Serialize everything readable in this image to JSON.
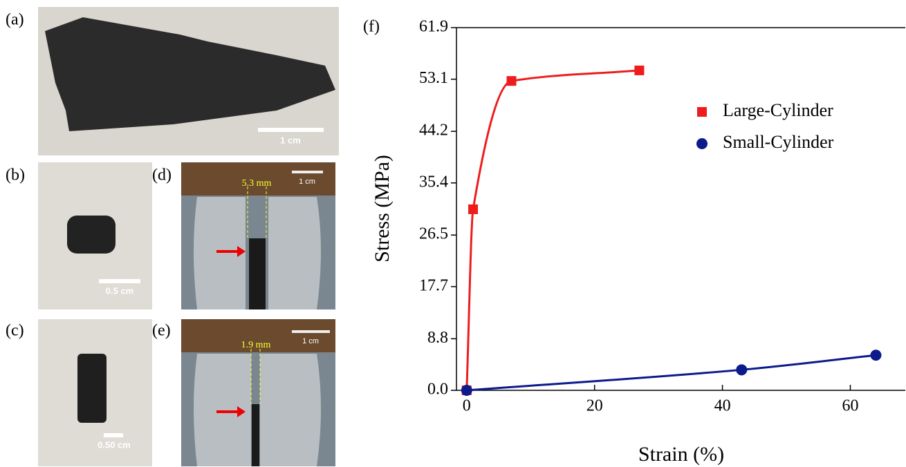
{
  "panels": [
    {
      "label": "(a)",
      "scale": "1 cm"
    },
    {
      "label": "(b)",
      "scale": "0.5 cm"
    },
    {
      "label": "(c)",
      "scale": "0.50 cm"
    },
    {
      "label": "(d)",
      "scale": "1 cm",
      "gap": "5.3 mm"
    },
    {
      "label": "(e)",
      "scale": "1 cm",
      "gap": "1.9 mm"
    }
  ],
  "chart_data": {
    "type": "line",
    "label": "(f)",
    "x_label": "Strain (%)",
    "y_label": "Stress (MPa)",
    "xlim": [
      -1.6,
      68.6
    ],
    "xticks": [
      0,
      20,
      40,
      60
    ],
    "ylim": [
      0,
      61.9
    ],
    "yticks": [
      {
        "value": 0,
        "label": "0.0"
      },
      8.8,
      17.7,
      26.5,
      35.4,
      44.2,
      53.1,
      61.9
    ],
    "legend": "upper right",
    "series": [
      {
        "name": "Large-Cylinder",
        "color": "#ee1c1c",
        "marker": "square",
        "x": [
          0,
          1,
          7,
          27
        ],
        "values": [
          0,
          30.9,
          52.8,
          54.6
        ]
      },
      {
        "name": "Small-Cylinder",
        "color": "#0c1a8c",
        "marker": "circle",
        "x": [
          0,
          43,
          64
        ],
        "values": [
          0,
          3.5,
          6.0
        ]
      }
    ]
  }
}
